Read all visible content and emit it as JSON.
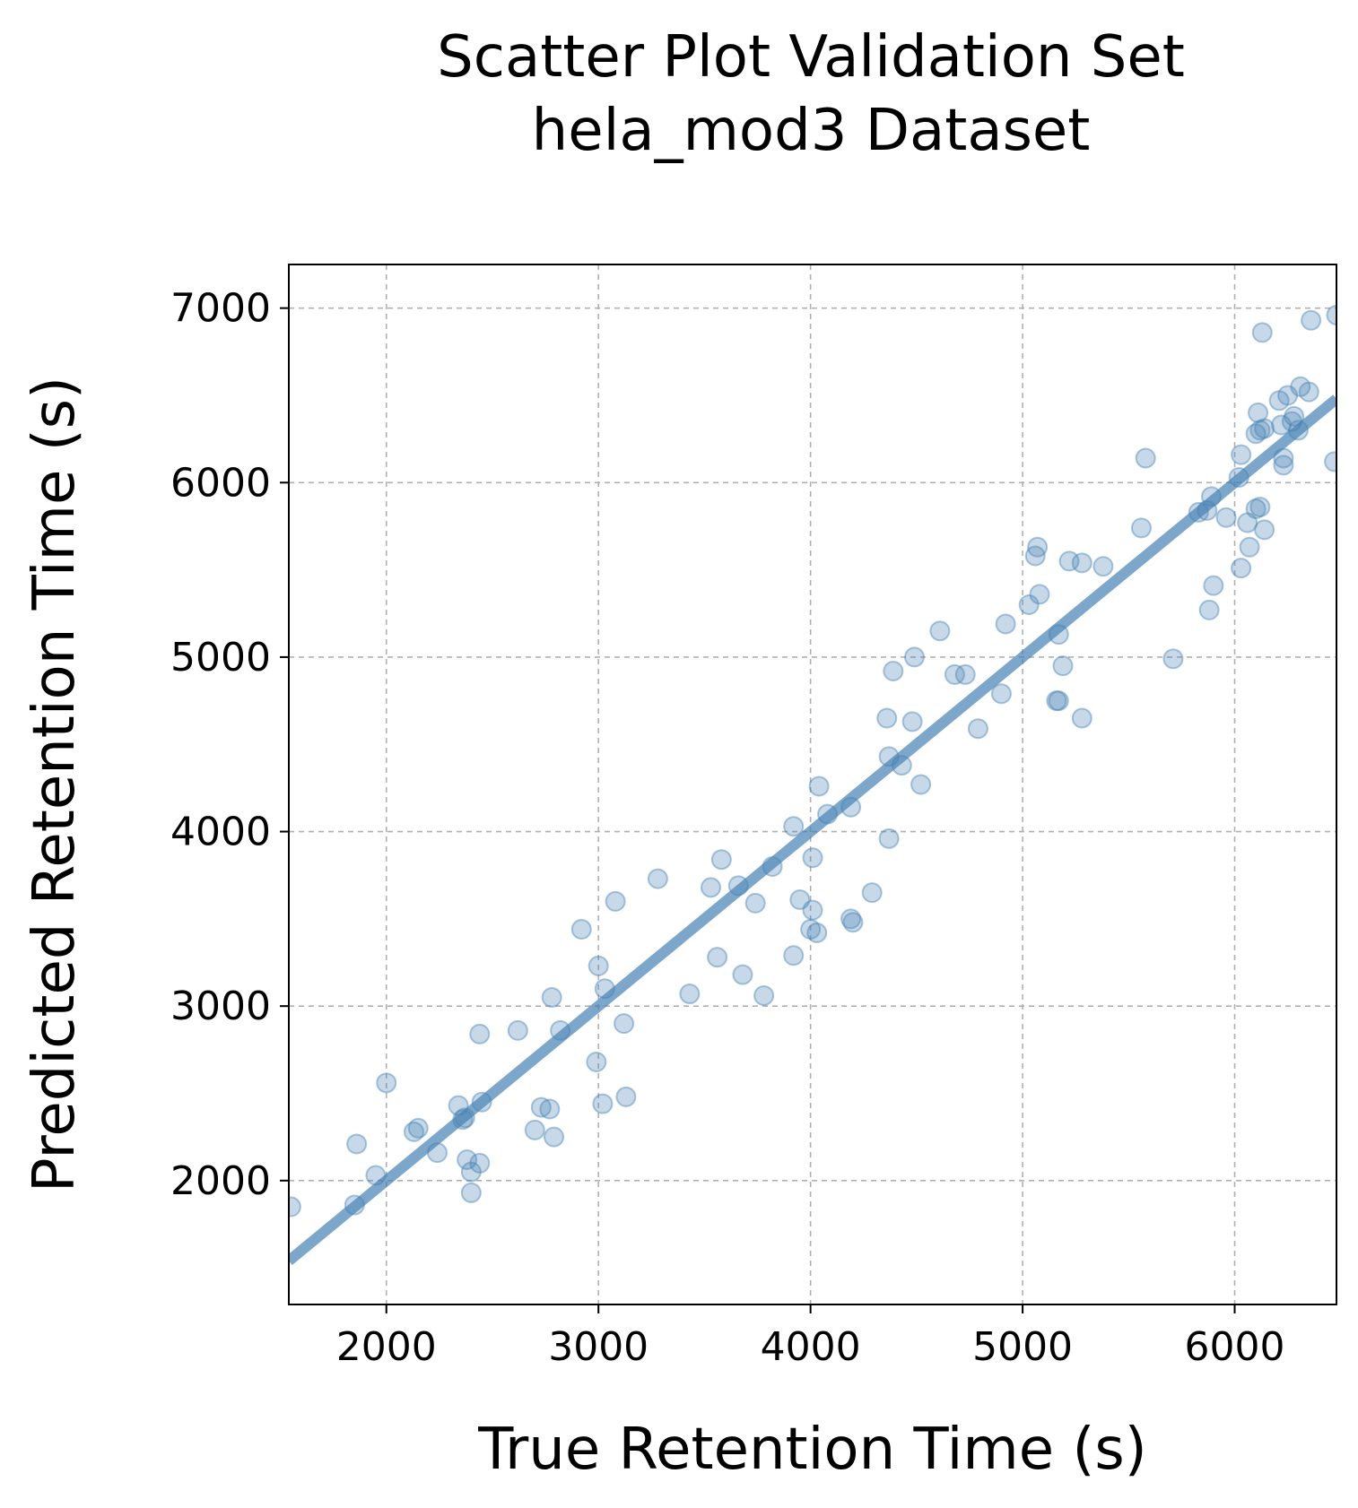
{
  "chart_data": {
    "type": "scatter",
    "title": "Scatter Plot Validation Set",
    "subtitle": "hela_mod3 Dataset",
    "xlabel": "True Retention Time (s)",
    "ylabel": "Predicted Retention Time (s)",
    "xlim": [
      1540,
      6480
    ],
    "ylim": [
      1290,
      7250
    ],
    "xticks": [
      2000,
      3000,
      4000,
      5000,
      6000
    ],
    "yticks": [
      2000,
      3000,
      4000,
      5000,
      6000,
      7000
    ],
    "grid": true,
    "point_color": "#4682B4",
    "line_color": "#4682B4",
    "reference_line": {
      "x": [
        1540,
        6480
      ],
      "y": [
        1540,
        6480
      ]
    },
    "points": [
      [
        1550,
        1850
      ],
      [
        1850,
        1860
      ],
      [
        1860,
        2210
      ],
      [
        1950,
        2030
      ],
      [
        2000,
        2560
      ],
      [
        2130,
        2280
      ],
      [
        2150,
        2300
      ],
      [
        2240,
        2160
      ],
      [
        2340,
        2430
      ],
      [
        2360,
        2350
      ],
      [
        2370,
        2360
      ],
      [
        2380,
        2120
      ],
      [
        2400,
        2050
      ],
      [
        2400,
        1930
      ],
      [
        2440,
        2100
      ],
      [
        2440,
        2840
      ],
      [
        2450,
        2450
      ],
      [
        2620,
        2860
      ],
      [
        2700,
        2290
      ],
      [
        2730,
        2420
      ],
      [
        2770,
        2410
      ],
      [
        2780,
        3050
      ],
      [
        2790,
        2250
      ],
      [
        2820,
        2860
      ],
      [
        2920,
        3440
      ],
      [
        2990,
        2680
      ],
      [
        3000,
        3230
      ],
      [
        3020,
        2440
      ],
      [
        3030,
        3100
      ],
      [
        3080,
        3600
      ],
      [
        3120,
        2900
      ],
      [
        3130,
        2480
      ],
      [
        3280,
        3730
      ],
      [
        3430,
        3070
      ],
      [
        3530,
        3680
      ],
      [
        3560,
        3280
      ],
      [
        3580,
        3840
      ],
      [
        3660,
        3690
      ],
      [
        3680,
        3180
      ],
      [
        3740,
        3590
      ],
      [
        3780,
        3060
      ],
      [
        3820,
        3800
      ],
      [
        3920,
        4030
      ],
      [
        3920,
        3290
      ],
      [
        3950,
        3610
      ],
      [
        4000,
        3440
      ],
      [
        4010,
        3550
      ],
      [
        4010,
        3850
      ],
      [
        4030,
        3420
      ],
      [
        4040,
        4260
      ],
      [
        4080,
        4100
      ],
      [
        4190,
        4140
      ],
      [
        4190,
        3500
      ],
      [
        4200,
        3480
      ],
      [
        4290,
        3650
      ],
      [
        4360,
        4650
      ],
      [
        4370,
        3960
      ],
      [
        4370,
        4430
      ],
      [
        4390,
        4920
      ],
      [
        4430,
        4380
      ],
      [
        4480,
        4630
      ],
      [
        4490,
        5000
      ],
      [
        4520,
        4270
      ],
      [
        4610,
        5150
      ],
      [
        4680,
        4900
      ],
      [
        4730,
        4900
      ],
      [
        4790,
        4590
      ],
      [
        4900,
        4790
      ],
      [
        4920,
        5190
      ],
      [
        5030,
        5300
      ],
      [
        5060,
        5580
      ],
      [
        5070,
        5630
      ],
      [
        5080,
        5360
      ],
      [
        5160,
        4750
      ],
      [
        5170,
        4750
      ],
      [
        5170,
        5130
      ],
      [
        5190,
        4950
      ],
      [
        5220,
        5550
      ],
      [
        5280,
        4650
      ],
      [
        5280,
        5540
      ],
      [
        5380,
        5520
      ],
      [
        5560,
        5740
      ],
      [
        5580,
        6140
      ],
      [
        5710,
        4990
      ],
      [
        5830,
        5830
      ],
      [
        5870,
        5840
      ],
      [
        5880,
        5270
      ],
      [
        5890,
        5920
      ],
      [
        5900,
        5410
      ],
      [
        5960,
        5800
      ],
      [
        6020,
        6030
      ],
      [
        6030,
        5510
      ],
      [
        6030,
        6160
      ],
      [
        6060,
        5770
      ],
      [
        6070,
        5630
      ],
      [
        6100,
        5850
      ],
      [
        6100,
        6280
      ],
      [
        6110,
        6400
      ],
      [
        6120,
        5860
      ],
      [
        6120,
        6300
      ],
      [
        6130,
        6860
      ],
      [
        6140,
        6310
      ],
      [
        6140,
        5730
      ],
      [
        6210,
        6470
      ],
      [
        6220,
        6330
      ],
      [
        6230,
        6140
      ],
      [
        6230,
        6100
      ],
      [
        6250,
        6500
      ],
      [
        6270,
        6350
      ],
      [
        6280,
        6380
      ],
      [
        6300,
        6300
      ],
      [
        6310,
        6550
      ],
      [
        6350,
        6520
      ],
      [
        6360,
        6930
      ],
      [
        6470,
        6120
      ],
      [
        6480,
        6960
      ]
    ]
  }
}
